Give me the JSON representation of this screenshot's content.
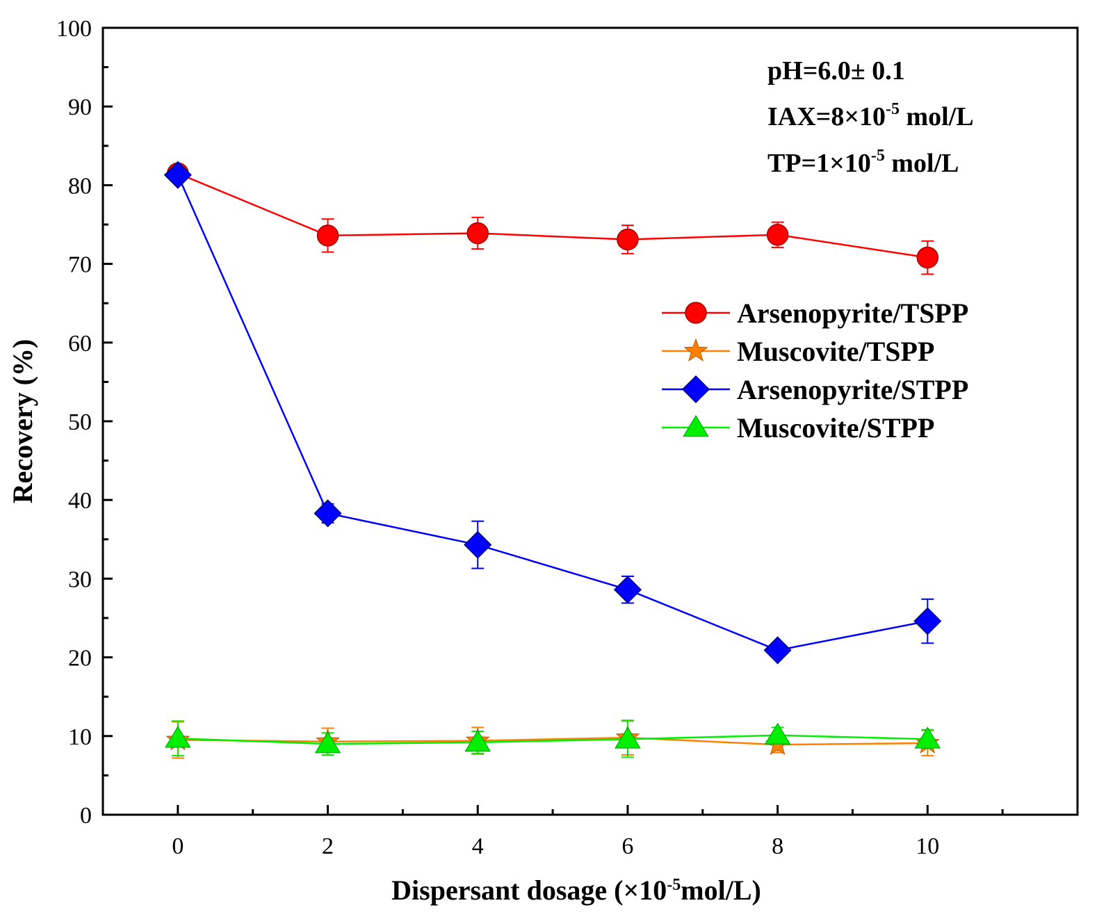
{
  "chart_data": {
    "type": "line",
    "title": "",
    "xlabel": {
      "pre": "Dispersant dosage (×10",
      "sup": "-5",
      "post": "mol/L)"
    },
    "ylabel": "Recovery (%)",
    "xlim": [
      -1,
      12
    ],
    "ylim": [
      0,
      100
    ],
    "xticks": [
      0,
      2,
      4,
      6,
      8,
      10
    ],
    "yticks": [
      0,
      10,
      20,
      30,
      40,
      50,
      60,
      70,
      80,
      90,
      100
    ],
    "x": [
      0,
      2,
      4,
      6,
      8,
      10
    ],
    "series": [
      {
        "name": "Arsenopyrite/TSPP",
        "color": "#ff0000",
        "marker": "circle",
        "values": [
          81.5,
          73.6,
          73.9,
          73.1,
          73.7,
          70.8
        ],
        "errors": [
          0,
          2.1,
          2.0,
          1.8,
          1.6,
          2.1
        ]
      },
      {
        "name": "Muscovite/TSPP",
        "color": "#ff8000",
        "marker": "star",
        "values": [
          9.5,
          9.3,
          9.4,
          9.8,
          8.9,
          9.1
        ],
        "errors": [
          2.3,
          1.7,
          1.7,
          2.2,
          1.0,
          1.6
        ]
      },
      {
        "name": "Arsenopyrite/STPP",
        "color": "#0000ff",
        "marker": "diamond",
        "values": [
          81.3,
          38.3,
          34.3,
          28.6,
          20.9,
          24.6
        ],
        "errors": [
          0,
          1.2,
          3.0,
          1.7,
          0,
          2.8
        ]
      },
      {
        "name": "Muscovite/STPP",
        "color": "#00ee00",
        "marker": "triangle",
        "values": [
          9.7,
          9.0,
          9.2,
          9.6,
          10.1,
          9.6
        ],
        "errors": [
          2.2,
          1.4,
          1.4,
          2.3,
          1.0,
          1.2
        ]
      }
    ],
    "legend_position": "right",
    "annotations": [
      {
        "pre": "pH=6.0±  0.1",
        "sup": "",
        "post": ""
      },
      {
        "pre": "IAX=8×10",
        "sup": "-5",
        "post": " mol/L"
      },
      {
        "pre": "TP=1×10",
        "sup": "-5",
        "post": " mol/L"
      }
    ]
  }
}
